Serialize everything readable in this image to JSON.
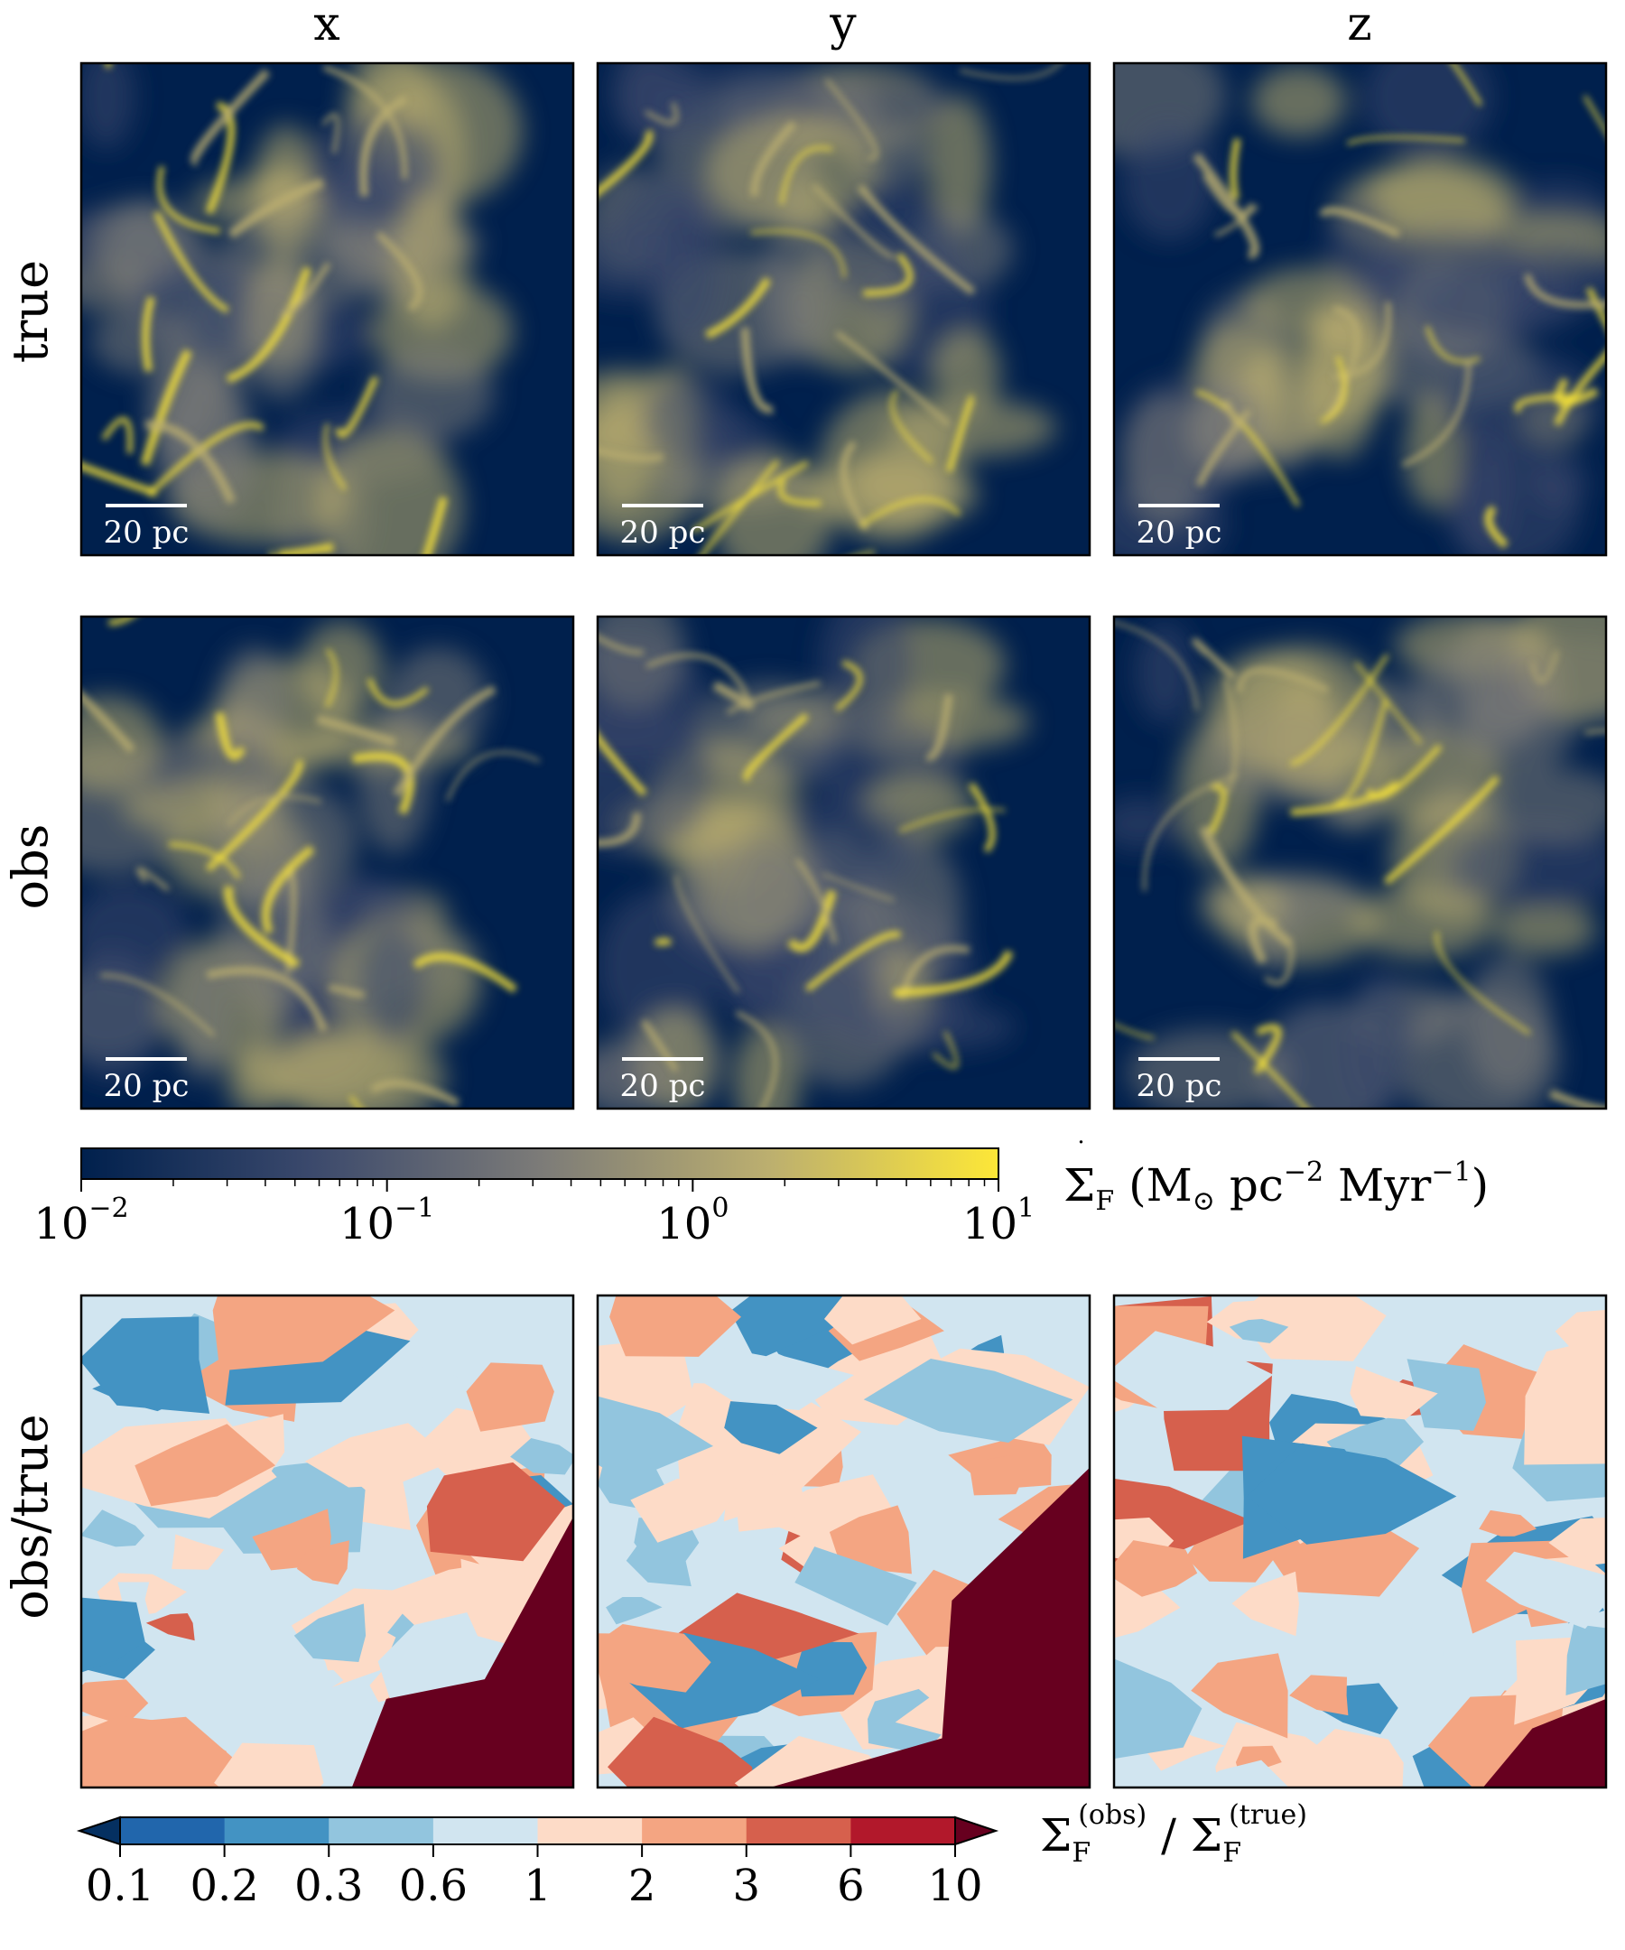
{
  "chart_data": [
    {
      "type": "heatmap",
      "description_free": true,
      "columns": [
        "x",
        "y",
        "z"
      ],
      "rows": [
        "true",
        "obs"
      ],
      "scale_bar_label": "20 pc",
      "colorbar": {
        "scale": "log",
        "range": [
          0.01,
          10
        ],
        "ticks": [
          {
            "base": "10",
            "exp": "−2"
          },
          {
            "base": "10",
            "exp": "−1"
          },
          {
            "base": "10",
            "exp": "0"
          },
          {
            "base": "10",
            "exp": "1"
          }
        ],
        "label": {
          "symbol": "Σ",
          "sub": "F",
          "rest": " (M",
          "sun_sub": "⊙",
          "pc": " pc",
          "pc_exp": "−2",
          "myr": " Myr",
          "myr_exp": "−1",
          "close": ")"
        },
        "colors": [
          "#00204d",
          "#3b496c",
          "#7c7b78",
          "#bcaf6f",
          "#fde737"
        ]
      }
    },
    {
      "type": "heatmap",
      "columns": [
        "x",
        "y",
        "z"
      ],
      "rows": [
        "obs/true"
      ],
      "colorbar": {
        "scale": "discrete",
        "boundaries": [
          "0.1",
          "0.2",
          "0.3",
          "0.6",
          "1",
          "2",
          "3",
          "6",
          "10"
        ],
        "extend": "both",
        "colors": [
          "#2166ac",
          "#4393c3",
          "#92c5de",
          "#d1e5f0",
          "#fddbc7",
          "#f4a582",
          "#d6604d",
          "#b2182b"
        ],
        "under_color": "#053061",
        "over_color": "#67001f",
        "label": {
          "num_symbol": "Σ",
          "num_sub": "F",
          "num_sup": "(obs)",
          "sep": " / ",
          "den_symbol": "Σ",
          "den_sub": "F",
          "den_sup": "(true)"
        }
      }
    }
  ]
}
